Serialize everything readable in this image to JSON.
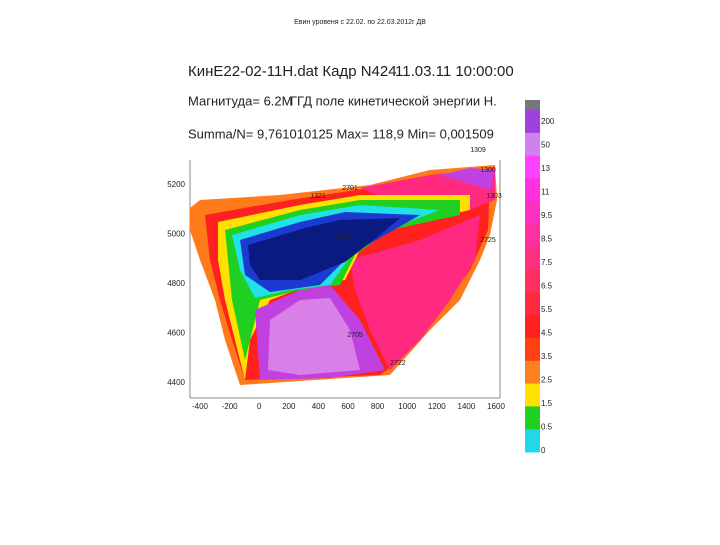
{
  "slide_title": "Евин уровеня с 22.02. по 22.03.2012г ДВ",
  "header": {
    "file": "КинЕ22-02-11Н.dat Кадр N424",
    "datetime": "11.03.11 10:00:00",
    "magnitude": "Магнитуда= 6.2М",
    "field": "ГГД поле кинетической энергии Н.",
    "summa": "Summa/N= 9,761010125 Max= 118,9 Min= 0,001509"
  },
  "plot": {
    "xticks": [
      "-400",
      "-200",
      "0",
      "200",
      "400",
      "600",
      "800",
      "1000",
      "1200",
      "1400",
      "1600"
    ],
    "yticks": [
      "5200",
      "5000",
      "4800",
      "4600",
      "4400"
    ],
    "point_labels": [
      "1309",
      "1300",
      "1303",
      "2701",
      "2702",
      "2725",
      "2705",
      "2722",
      "1321"
    ]
  },
  "colorbar": {
    "labels": [
      "200",
      "50",
      "13",
      "11",
      "9.5",
      "8.5",
      "7.5",
      "6.5",
      "5.5",
      "4.5",
      "3.5",
      "2.5",
      "1.5",
      "0.5",
      "0"
    ]
  }
}
